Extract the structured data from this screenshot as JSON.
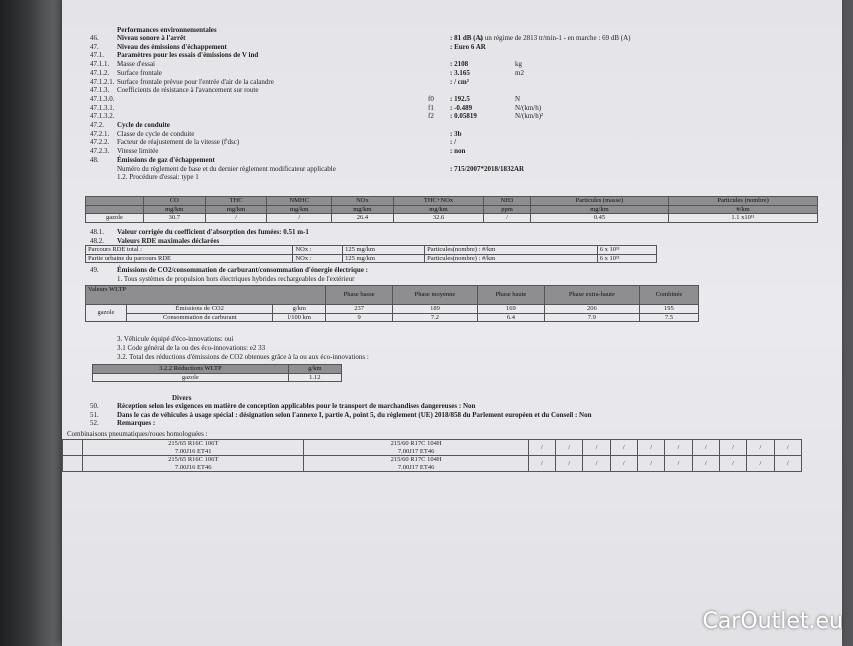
{
  "header": {
    "title": "Performances environnementales"
  },
  "rows": [
    {
      "num": "46.",
      "label": "Niveau sonore à l'arrêt",
      "value": ": 81 dB (A)",
      "extra": "à un régime de 2813 tr/min-1 - en marche :  69 dB (A)"
    },
    {
      "num": "47.",
      "label": "Niveau des émissions d'échappement",
      "value": ": Euro 6 AR"
    },
    {
      "num": "47.1.",
      "label": "Paramètres pour les essais d'émissions de V ind"
    },
    {
      "num": "47.1.1.",
      "label": "Masse d'essai",
      "value": ": 2108",
      "unit": "kg"
    },
    {
      "num": "47.1.2.",
      "label": "Surface frontale",
      "value": ": 3.165",
      "unit": "m2"
    },
    {
      "num": "47.1.2.1.",
      "label": "Surface frontale prévue pour l'entrée d'air de la calandre",
      "value": ": / cm²"
    },
    {
      "num": "47.1.3.",
      "label": "Coefficients de résistance à l'avancement sur route"
    },
    {
      "num": "47.1.3.0.",
      "ref": "f0",
      "value": ": 192.5",
      "unit": "N"
    },
    {
      "num": "47.1.3.1.",
      "ref": "f1",
      "value": ": -0.489",
      "unit": "N/(km/h)"
    },
    {
      "num": "47.1.3.2.",
      "ref": "f2",
      "value": ": 0.05819",
      "unit": "N/(km/h)²"
    },
    {
      "num": "47.2.",
      "label": "Cycle de conduite"
    },
    {
      "num": "47.2.1.",
      "label": "Classe de cycle de conduite",
      "value": ": 3b"
    },
    {
      "num": "47.2.2.",
      "label": "Facteur de réajustement de la vitesse (f'dsc)",
      "value": ": /"
    },
    {
      "num": "47.2.3.",
      "label": "Vitesse limitée",
      "value": ": non"
    },
    {
      "num": "48.",
      "label": "Émissions de gaz d'échappement"
    },
    {
      "label": "Numéro du règlement de base et du dernier règlement modificateur applicable",
      "value": ": 715/2007*2018/1832AR"
    },
    {
      "label": "1.2. Procédure d'essai: type 1"
    }
  ],
  "emissions_table": {
    "headers": [
      [
        "CO",
        "mg/km"
      ],
      [
        "THC",
        "mg/km"
      ],
      [
        "NMHC",
        "mg/km"
      ],
      [
        "NOx",
        "mg/km"
      ],
      [
        "THC+NOx",
        "mg/km"
      ],
      [
        "NH3",
        "ppm"
      ],
      [
        "Particules (masse)",
        "mg/km"
      ],
      [
        "Particules (nombre)",
        "#/km"
      ]
    ],
    "fuel": "gazole",
    "values": [
      "30.7",
      "/",
      "/",
      "26.4",
      "32.6",
      "/",
      "0.45",
      "1.1 x10¹¹"
    ]
  },
  "rows2": [
    {
      "num": "48.1.",
      "label": "Valeur corrigée du coefficient d'absorption des fumées: 0.51 m-1"
    },
    {
      "num": "48.2.",
      "label": "Valeurs RDE maximales déclarées"
    }
  ],
  "rde_table": [
    [
      "Parcours RDE total :",
      "NOx :",
      "125 mg/km",
      "Particules(nombre) : #/km",
      "6 x 10¹¹"
    ],
    [
      "Partie urbaine du parcours RDE",
      "NOx :",
      "125 mg/km",
      "Particules(nombre) : #/km",
      "6 x 10¹¹"
    ]
  ],
  "rows3": [
    {
      "num": "49.",
      "label": "Émissions de CO2/consommation de carburant/consommation d'énergie électrique :"
    },
    {
      "label": "1. Tous systèmes de propulsion hors électriques hybrides rechargeables de l'extérieur"
    }
  ],
  "wltp_table": {
    "title": "Valeurs WLTP",
    "phases": [
      "Phase basse",
      "Phase moyenne",
      "Phase haute",
      "Phase extra-haute",
      "Combinée"
    ],
    "fuel": "gazole",
    "rows": [
      {
        "metric": "Émissions de CO2",
        "unit": "g/km",
        "values": [
          "237",
          "189",
          "169",
          "206",
          "195"
        ]
      },
      {
        "metric": "Consommation de carburant",
        "unit": "l/100 km",
        "values": [
          "9",
          "7.2",
          "6.4",
          "7.9",
          "7.5"
        ]
      }
    ]
  },
  "eco": [
    "3. Véhicule équipé d'éco-innovations: oui",
    "3.1 Code général de la ou des éco-innovations: e2 33",
    "3.2. Total des réductions d'émissions de CO2 obtenues grâce à la ou aux éco-innovations :"
  ],
  "eco_table": {
    "header": [
      "3.2.2 Réductions WLTP",
      "g/km"
    ],
    "row": [
      "gazole",
      "1.12"
    ]
  },
  "misc": {
    "title": "Divers",
    "rows": [
      {
        "num": "50.",
        "label": "Réception selon les exigences en matière de conception applicables pour le transport de marchandises dangereuses : Non"
      },
      {
        "num": "51.",
        "label": "Dans le cas de véhicules à usage spécial : désignation selon l'annexe I, partie A, point 5, du règlement (UE) 2018/858 du Parlement européen et du Conseil : Non"
      },
      {
        "num": "52.",
        "label": "Remarques :"
      }
    ],
    "tyres_title": "Combinaisons pneumatiques/roues homologuées :"
  },
  "tyres": {
    "empty": "/",
    "rows": [
      [
        "215/65 R16C 106T",
        "7.00J16 ET41",
        "215/60 R17C 104H",
        "7.00J17 ET46"
      ],
      [
        "215/65 R16C 106T",
        "7.00J16 ET46",
        "215/60 R17C 104H",
        "7.00J17 ET46"
      ]
    ]
  },
  "watermark": "CarOutlet.eu"
}
